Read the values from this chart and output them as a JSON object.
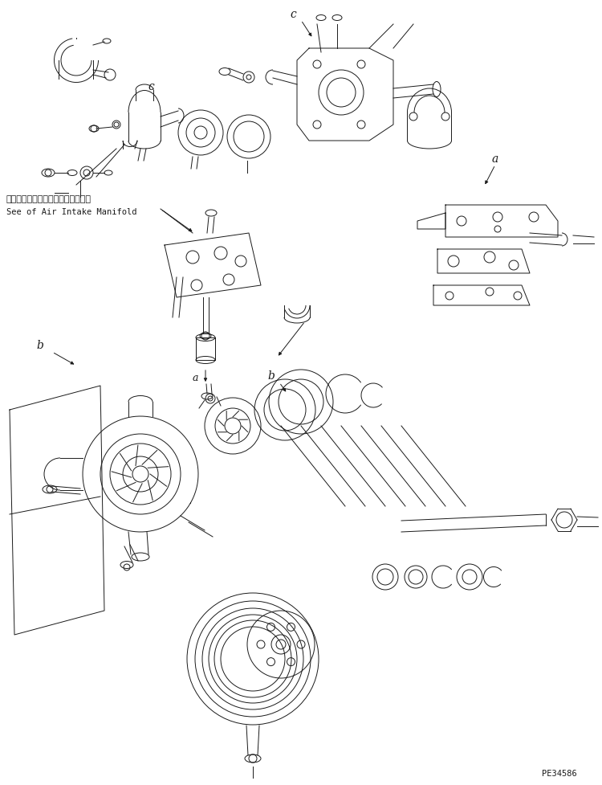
{
  "background_color": "#ffffff",
  "line_color": "#1a1a1a",
  "part_code": "PE34586",
  "japanese_text": "エアーインテークマニホールド参照",
  "english_text": "See of Air Intake Manifold",
  "fig_width": 7.5,
  "fig_height": 9.77,
  "dpi": 100
}
